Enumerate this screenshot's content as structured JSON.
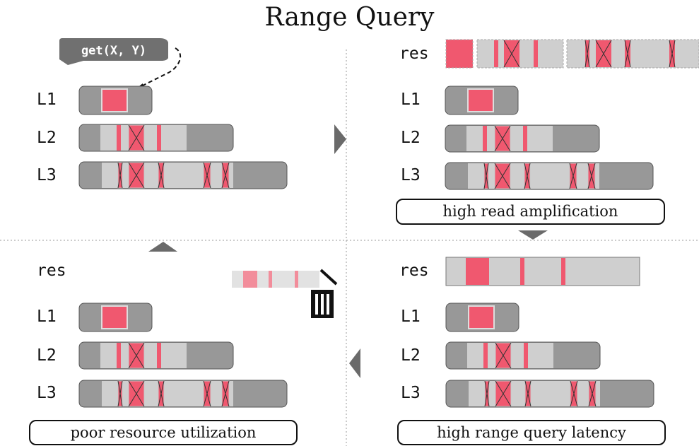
{
  "title": "Range Query",
  "query_label": "get(X, Y)",
  "level_labels": [
    "L1",
    "L2",
    "L3"
  ],
  "res_label": "res",
  "captions": {
    "top_right": "high read amplification",
    "bottom_right": "high range query latency",
    "bottom_left": "poor resource utilization"
  },
  "icons": [
    "arrow-right-icon",
    "arrow-down-icon",
    "arrow-left-icon",
    "arrow-up-icon",
    "trash-icon"
  ],
  "colors": {
    "level_dark": "#989898",
    "level_light": "#cfcfcf",
    "key_red": "#f0586f",
    "arrow": "#6a6a6a"
  }
}
